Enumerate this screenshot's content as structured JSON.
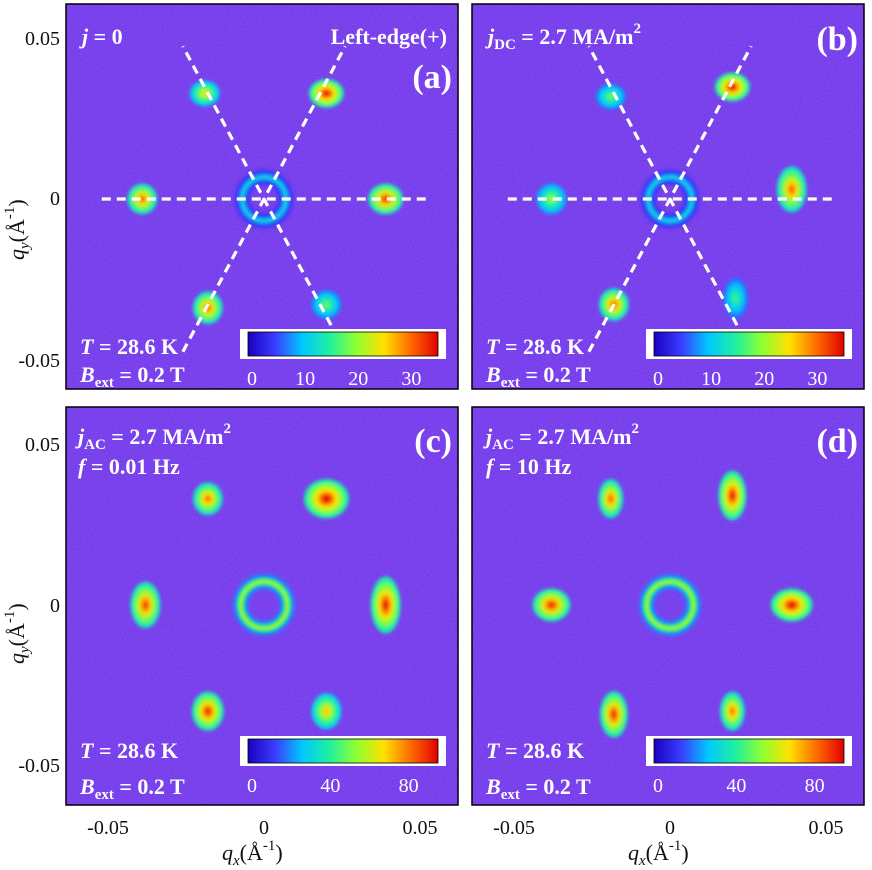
{
  "figure": {
    "axes": {
      "x_label_main": "q",
      "x_label_sub": "x",
      "x_label_unit": "(Å",
      "x_label_exp": "-1",
      "x_label_close": ")",
      "y_label_main": "q",
      "y_label_sub": "y",
      "y_label_unit": "(Å",
      "y_label_exp": "-1",
      "y_label_close": ")",
      "x_ticks": [
        "-0.05",
        "0",
        "0.05"
      ],
      "y_ticks": [
        "0.05",
        "0",
        "-0.05"
      ]
    },
    "panels": [
      {
        "id": "a",
        "letter": "(a)",
        "line1_main": "j",
        "line1_sub": "",
        "line1_rest": " = 0",
        "line1_exp": "",
        "corner_label": "Left-edge(+)",
        "temp_label": "T",
        "temp_value": " = 28.6 K",
        "field_main": "B",
        "field_sub": "ext",
        "field_value": " = 0.2 T",
        "colorbar_ticks": [
          "0",
          "10",
          "20",
          "30"
        ]
      },
      {
        "id": "b",
        "letter": "(b)",
        "line1_main": "j",
        "line1_sub": "DC",
        "line1_rest": " = 2.7 MA/m",
        "line1_exp": "2",
        "corner_label": "",
        "temp_label": "T",
        "temp_value": " = 28.6 K",
        "field_main": "B",
        "field_sub": "ext",
        "field_value": " = 0.2 T",
        "colorbar_ticks": [
          "0",
          "10",
          "20",
          "30"
        ]
      },
      {
        "id": "c",
        "letter": "(c)",
        "line1_main": "j",
        "line1_sub": "AC",
        "line1_rest": " = 2.7 MA/m",
        "line1_exp": "2",
        "line2_main": "f",
        "line2_rest": " = 0.01 Hz",
        "temp_label": "T",
        "temp_value": " = 28.6 K",
        "field_main": "B",
        "field_sub": "ext",
        "field_value": " = 0.2 T",
        "colorbar_ticks": [
          "0",
          "40",
          "80"
        ]
      },
      {
        "id": "d",
        "letter": "(d)",
        "line1_main": "j",
        "line1_sub": "AC",
        "line1_rest": " = 2.7 MA/m",
        "line1_exp": "2",
        "line2_main": "f",
        "line2_rest": " = 10 Hz",
        "temp_label": "T",
        "temp_value": " = 28.6 K",
        "field_main": "B",
        "field_sub": "ext",
        "field_value": " = 0.2 T",
        "colorbar_ticks": [
          "0",
          "40",
          "80"
        ]
      }
    ]
  },
  "colors": {
    "background": "#6a2ee8",
    "colormap": [
      "#1a00c0",
      "#3a3cff",
      "#00c8ff",
      "#20f0a0",
      "#90ff30",
      "#ffe000",
      "#ff6a00",
      "#e00000"
    ],
    "guide_line": "#ffffff"
  },
  "chart_data": {
    "type": "heatmap",
    "title": "",
    "xlabel": "q_x (Å^-1)",
    "ylabel": "q_y (Å^-1)",
    "xlim": [
      -0.06,
      0.06
    ],
    "ylim": [
      -0.06,
      0.06
    ],
    "x_ticks": [
      -0.05,
      0,
      0.05
    ],
    "y_ticks": [
      0.05,
      0,
      -0.05
    ],
    "panels": [
      {
        "id": "a",
        "colorbar_range": [
          0,
          35
        ],
        "colorbar_ticks": [
          0,
          10,
          20,
          30
        ],
        "guide_lines_deg": [
          0,
          60,
          120
        ],
        "ring_radius": 0.007,
        "ring_intensity": 12,
        "spots": [
          {
            "qx": -0.039,
            "qy": 0.0,
            "intensity": 30,
            "rx": 0.003,
            "ry": 0.003
          },
          {
            "qx": 0.039,
            "qy": 0.0,
            "intensity": 32,
            "rx": 0.0035,
            "ry": 0.003
          },
          {
            "qx": -0.019,
            "qy": 0.033,
            "intensity": 24,
            "rx": 0.003,
            "ry": 0.0025
          },
          {
            "qx": 0.02,
            "qy": 0.033,
            "intensity": 34,
            "rx": 0.0035,
            "ry": 0.0028
          },
          {
            "qx": -0.018,
            "qy": -0.034,
            "intensity": 30,
            "rx": 0.003,
            "ry": 0.0032
          },
          {
            "qx": 0.02,
            "qy": -0.033,
            "intensity": 18,
            "rx": 0.003,
            "ry": 0.0028
          }
        ]
      },
      {
        "id": "b",
        "colorbar_range": [
          0,
          35
        ],
        "colorbar_ticks": [
          0,
          10,
          20,
          30
        ],
        "guide_lines_deg": [
          0,
          60,
          120
        ],
        "ring_radius": 0.007,
        "ring_intensity": 12,
        "spots": [
          {
            "qx": -0.038,
            "qy": 0.0,
            "intensity": 20,
            "rx": 0.003,
            "ry": 0.003
          },
          {
            "qx": 0.039,
            "qy": 0.003,
            "intensity": 30,
            "rx": 0.003,
            "ry": 0.0045
          },
          {
            "qx": -0.019,
            "qy": 0.032,
            "intensity": 18,
            "rx": 0.003,
            "ry": 0.0025
          },
          {
            "qx": 0.02,
            "qy": 0.035,
            "intensity": 34,
            "rx": 0.0035,
            "ry": 0.0028
          },
          {
            "qx": -0.018,
            "qy": -0.033,
            "intensity": 30,
            "rx": 0.003,
            "ry": 0.0032
          },
          {
            "qx": 0.021,
            "qy": -0.031,
            "intensity": 16,
            "rx": 0.0025,
            "ry": 0.004
          }
        ]
      },
      {
        "id": "c",
        "colorbar_range": [
          0,
          95
        ],
        "colorbar_ticks": [
          0,
          40,
          80
        ],
        "guide_lines_deg": [],
        "ring_radius": 0.0075,
        "ring_intensity": 60,
        "spots": [
          {
            "qx": -0.038,
            "qy": 0.0,
            "intensity": 85,
            "rx": 0.003,
            "ry": 0.0045
          },
          {
            "qx": 0.039,
            "qy": 0.0,
            "intensity": 90,
            "rx": 0.003,
            "ry": 0.0055
          },
          {
            "qx": -0.018,
            "qy": 0.033,
            "intensity": 80,
            "rx": 0.003,
            "ry": 0.0032
          },
          {
            "qx": 0.02,
            "qy": 0.033,
            "intensity": 92,
            "rx": 0.0045,
            "ry": 0.0038
          },
          {
            "qx": -0.018,
            "qy": -0.033,
            "intensity": 88,
            "rx": 0.0032,
            "ry": 0.0038
          },
          {
            "qx": 0.02,
            "qy": -0.033,
            "intensity": 70,
            "rx": 0.003,
            "ry": 0.0035
          }
        ]
      },
      {
        "id": "d",
        "colorbar_range": [
          0,
          95
        ],
        "colorbar_ticks": [
          0,
          40,
          80
        ],
        "guide_lines_deg": [],
        "ring_radius": 0.0075,
        "ring_intensity": 60,
        "spots": [
          {
            "qx": -0.038,
            "qy": 0.0,
            "intensity": 88,
            "rx": 0.0038,
            "ry": 0.0032
          },
          {
            "qx": 0.039,
            "qy": 0.0,
            "intensity": 92,
            "rx": 0.0042,
            "ry": 0.0032
          },
          {
            "qx": -0.019,
            "qy": 0.033,
            "intensity": 82,
            "rx": 0.0025,
            "ry": 0.0038
          },
          {
            "qx": 0.02,
            "qy": 0.034,
            "intensity": 90,
            "rx": 0.0028,
            "ry": 0.0048
          },
          {
            "qx": -0.018,
            "qy": -0.034,
            "intensity": 88,
            "rx": 0.0028,
            "ry": 0.0045
          },
          {
            "qx": 0.02,
            "qy": -0.033,
            "intensity": 80,
            "rx": 0.0025,
            "ry": 0.0038
          }
        ]
      }
    ]
  }
}
